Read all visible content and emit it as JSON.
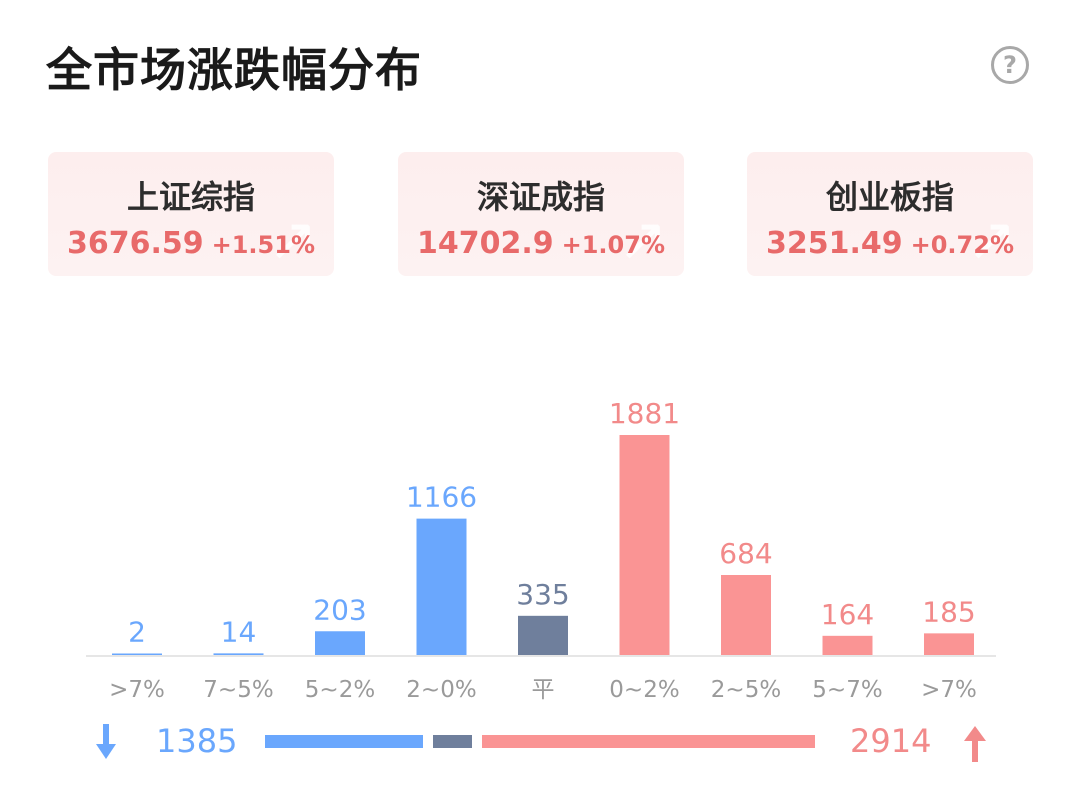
{
  "title": "全市场涨跌幅分布",
  "help_icon": "question-circle-icon",
  "help_glyph": "?",
  "indices": [
    {
      "name": "上证综指",
      "price": "3676.59",
      "change": "+1.51%"
    },
    {
      "name": "深证成指",
      "price": "14702.9",
      "change": "+1.07%"
    },
    {
      "name": "创业板指",
      "price": "3251.49",
      "change": "+0.72%"
    }
  ],
  "colors": {
    "down": "#6aa7fd",
    "flat": "#6f7f9c",
    "up": "#fa9494",
    "up_text": "#f28a8a",
    "axis": "#e6e6e6"
  },
  "chart_data": {
    "type": "bar",
    "categories": [
      ">7%",
      "7~5%",
      "5~2%",
      "2~0%",
      "平",
      "0~2%",
      "2~5%",
      "5~7%",
      ">7%"
    ],
    "values": [
      2,
      14,
      203,
      1166,
      335,
      1881,
      684,
      164,
      185
    ],
    "groups": [
      "down",
      "down",
      "down",
      "down",
      "flat",
      "up",
      "up",
      "up",
      "up"
    ],
    "ylim": [
      0,
      1881
    ]
  },
  "summary": {
    "down_count": "1385",
    "up_count": "2914",
    "flat_value": 335,
    "down_icon": "arrow-down-icon",
    "up_icon": "arrow-up-icon"
  }
}
